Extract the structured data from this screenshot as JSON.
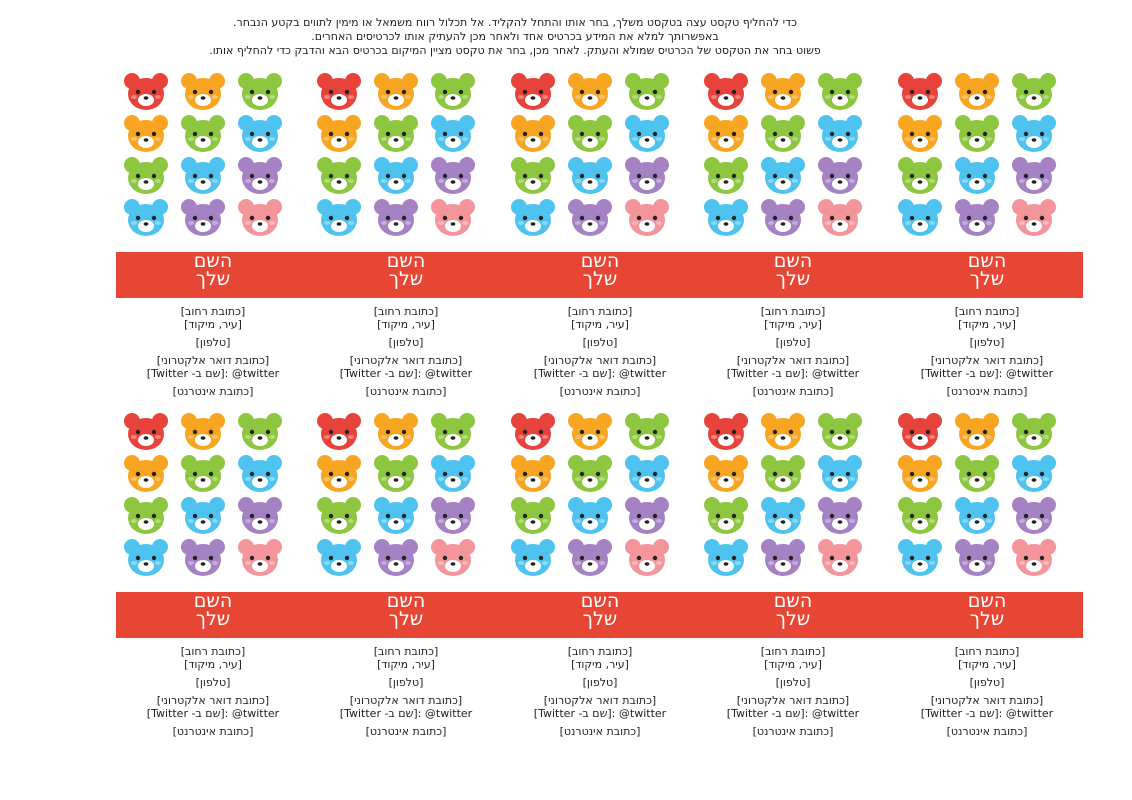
{
  "instructions": [
    "כדי להחליף טקסט עצה בטקסט משלך, בחר אותו והתחל להקליד. אל תכלול רווח משמאל או מימין לתווים בקטע הנבחר.",
    "באפשרותך למלא את המידע בכרטיס אחד ולאחר מכן להעתיק אותו לכרטיסים האחרים.",
    "פשוט בחר את הטקסט של הכרטיס שמולא והעתק. לאחר מכן, בחר את טקסט מציין המיקום בכרטיס הבא והדבק כדי להחליף אותו."
  ],
  "card": {
    "name_line1": "השם",
    "name_line2": "שלך",
    "street": "[כתובת רחוב]",
    "city_zip": "[עיר, מיקוד]",
    "phone": "[טלפון]",
    "email": "[כתובת דואר אלקטרוני]",
    "twitter": "twitter@ :[שם ב- Twitter]",
    "website": "[כתובת אינטרנט]"
  },
  "bear_colors": {
    "red": "#e8433a",
    "orange": "#f8a521",
    "green": "#8dc63f",
    "blue": "#4fc3f0",
    "purple": "#a582c4",
    "pink": "#f3959b"
  },
  "bear_grid": [
    [
      "red",
      "orange",
      "green"
    ],
    [
      "orange",
      "green",
      "blue"
    ],
    [
      "green",
      "blue",
      "purple"
    ],
    [
      "blue",
      "purple",
      "pink"
    ]
  ],
  "band_color": "#e84634"
}
